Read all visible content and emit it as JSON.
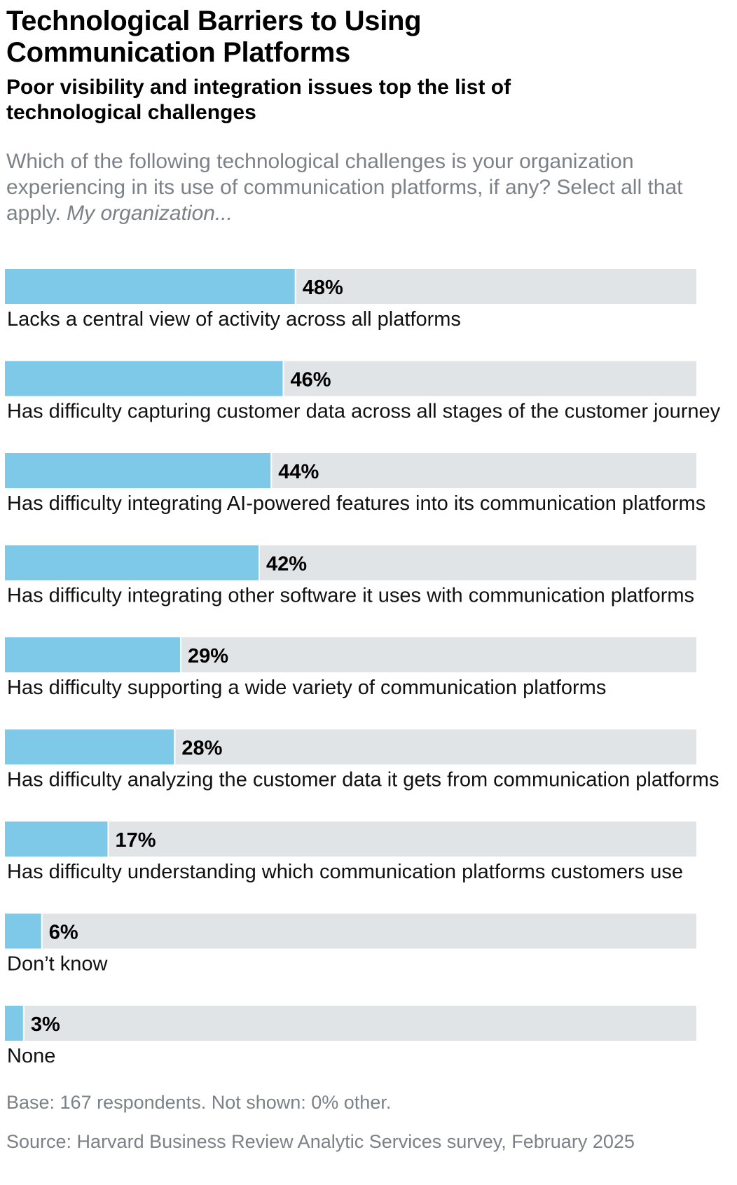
{
  "title": "Technological Barriers to Using Communication Platforms",
  "subtitle": "Poor visibility and integration issues top the list of technological challenges",
  "question": {
    "text": "Which of the following technological challenges is your organization experiencing in its use of communication platforms, if any? Select all that apply.",
    "emphasis": "My organization..."
  },
  "colors": {
    "bar_fill": "#7ec9e8",
    "bar_track": "#e1e4e7",
    "muted_text": "#7b8187"
  },
  "chart_data": {
    "type": "bar",
    "orientation": "horizontal",
    "xlim": [
      0,
      100
    ],
    "categories": [
      "Lacks a central view of activity across all platforms",
      "Has difficulty capturing customer data across all stages of the customer journey",
      "Has difficulty integrating AI-powered features into its communication platforms",
      "Has difficulty integrating other software it uses with communication platforms",
      "Has difficulty supporting a wide variety of communication platforms",
      "Has difficulty analyzing the customer data it gets from communication platforms",
      "Has difficulty understanding which communication platforms customers use",
      "Don’t know",
      "None"
    ],
    "values": [
      48,
      46,
      44,
      42,
      29,
      28,
      17,
      6,
      3
    ],
    "value_labels": [
      "48%",
      "46%",
      "44%",
      "42%",
      "29%",
      "28%",
      "17%",
      "6%",
      "3%"
    ],
    "grid": false,
    "legend": "none"
  },
  "footnote": "Base: 167 respondents. Not shown: 0% other.",
  "source": "Source: Harvard Business Review Analytic Services survey, February 2025"
}
